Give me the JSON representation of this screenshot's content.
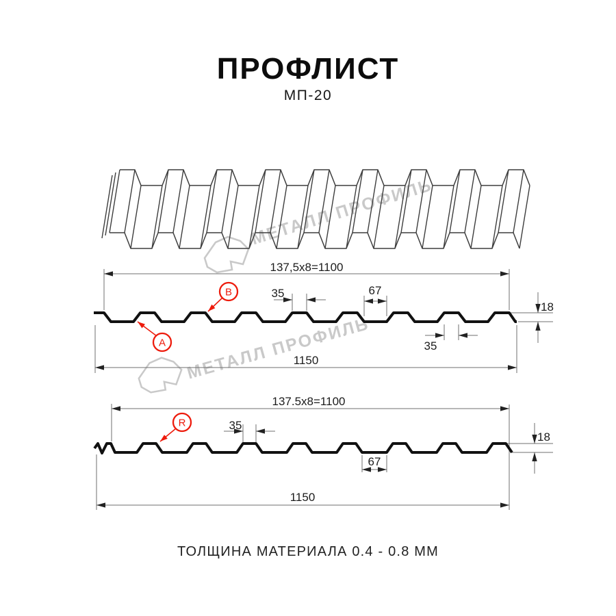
{
  "page": {
    "title": "ПРОФЛИСТ",
    "subtitle": "МП-20",
    "caption": "ТОЛЩИНА МАТЕРИАЛА 0.4 - 0.8 ММ"
  },
  "watermark": {
    "text": "МЕТАЛЛ ПРОФИЛЬ"
  },
  "colors": {
    "accent_red": "#ed1b0c",
    "profile_line": "#111111",
    "dimension_line": "#6f6f6f",
    "drawing_line": "#3d3d3d",
    "watermark_gray": "#c9c9c9"
  },
  "section1": {
    "pitch": "137,5x8=1100",
    "rib_top_width": "35",
    "valley_width": "67",
    "height": "18",
    "overall_width": "1150",
    "rib_base_width": "35",
    "marker_a": "A",
    "marker_b": "B"
  },
  "section2": {
    "pitch": "137.5x8=1100",
    "rib_top_width": "35",
    "valley_width": "67",
    "height": "18",
    "overall_width": "1150",
    "marker_r": "R"
  }
}
